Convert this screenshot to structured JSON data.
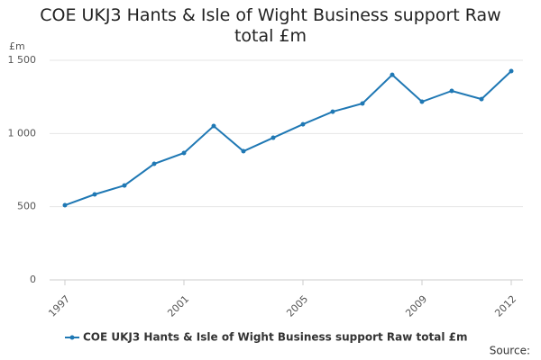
{
  "chart_data": {
    "type": "line",
    "title": "COE UKJ3 Hants & Isle of Wight Business support Raw total £m",
    "y_label": "£m",
    "x": [
      1997,
      1998,
      1999,
      2000,
      2001,
      2002,
      2003,
      2004,
      2005,
      2006,
      2007,
      2008,
      2009,
      2010,
      2011,
      2012
    ],
    "series": [
      {
        "name": "COE UKJ3 Hants & Isle of Wight Business support Raw total £m",
        "color": "#1f78b4",
        "values": [
          510,
          584,
          645,
          793,
          867,
          1051,
          879,
          971,
          1063,
          1149,
          1205,
          1401,
          1217,
          1291,
          1235,
          1426
        ]
      }
    ],
    "xlim": [
      1997,
      2012
    ],
    "xticks": [
      1997,
      2001,
      2005,
      2009,
      2012
    ],
    "ylim": [
      0,
      1500
    ],
    "yticks": [
      0,
      500,
      {
        "value": 1000,
        "label": "1 000"
      },
      {
        "value": 1500,
        "label": "1 500"
      }
    ],
    "grid": true,
    "legend": "bottom",
    "source": "Source:"
  }
}
